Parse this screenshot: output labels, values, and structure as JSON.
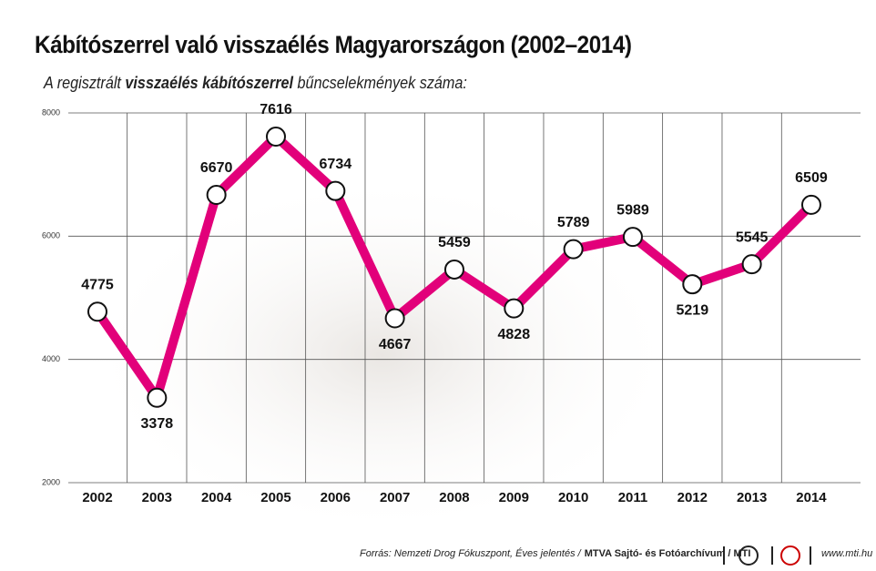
{
  "chart_data": {
    "type": "line",
    "title": "Kábítószerrel való visszaélés Magyarországon (2002–2014)",
    "subtitle": [
      "A regisztrált",
      "visszaélés kábítószerrel",
      "bűncselekmények száma:"
    ],
    "categories": [
      "2002",
      "2003",
      "2004",
      "2005",
      "2006",
      "2007",
      "2008",
      "2009",
      "2010",
      "2011",
      "2012",
      "2013",
      "2014"
    ],
    "values": [
      4775,
      3378,
      6670,
      7616,
      6734,
      4667,
      5459,
      4828,
      5789,
      5989,
      5219,
      5545,
      6509
    ],
    "color": "#e2007a",
    "ylim": [
      2000,
      8000
    ],
    "yticks": [
      2000,
      4000,
      6000,
      8000
    ],
    "grid": true,
    "source": [
      "Forrás: Nemzeti Drog Fókuszpont, Éves jelentés /",
      "MTVA Sajtó- és Fotóarchívum / MTI"
    ],
    "website": "www.mti.hu"
  }
}
